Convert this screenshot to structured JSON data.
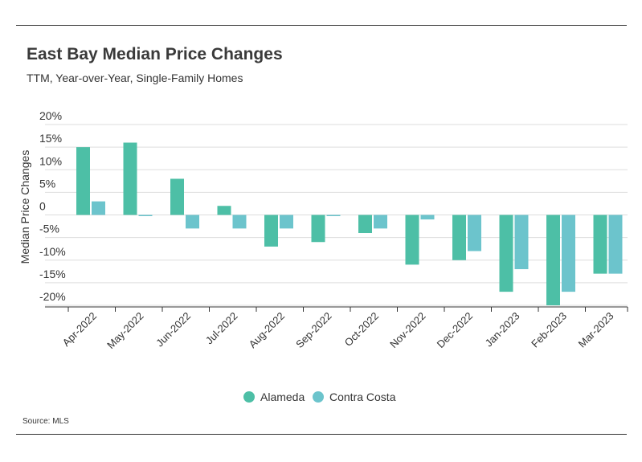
{
  "header": {
    "title": "East Bay Median Price Changes",
    "subtitle": "TTM, Year-over-Year, Single-Family Homes"
  },
  "footer": {
    "source": "Source: MLS"
  },
  "colors": {
    "alameda": "#4dbfa6",
    "contra_costa": "#6cc4cc",
    "grid": "#dddddd",
    "axis": "#333333"
  },
  "chart_data": {
    "type": "bar",
    "title": "East Bay Median Price Changes",
    "subtitle": "TTM, Year-over-Year, Single-Family Homes",
    "xlabel": "",
    "ylabel": "Median Price Changes",
    "ylim": [
      -20,
      20
    ],
    "yticks": [
      20,
      15,
      10,
      5,
      0,
      -5,
      -10,
      -15,
      -20
    ],
    "ytick_labels": [
      "20%",
      "15%",
      "10%",
      "5%",
      "0",
      "-5%",
      "-10%",
      "-15%",
      "-20%"
    ],
    "grid": true,
    "legend_position": "bottom-center",
    "categories": [
      "Apr-2022",
      "May-2022",
      "Jun-2022",
      "Jul-2022",
      "Aug-2022",
      "Sep-2022",
      "Oct-2022",
      "Nov-2022",
      "Dec-2022",
      "Jan-2023",
      "Feb-2023",
      "Mar-2023"
    ],
    "series": [
      {
        "name": "Alameda",
        "values": [
          15,
          16,
          8,
          2,
          -7,
          -6,
          -4,
          -11,
          -10,
          -17,
          -20,
          -13
        ]
      },
      {
        "name": "Contra Costa",
        "values": [
          3,
          0,
          -3,
          -3,
          -3,
          0,
          -3,
          -1,
          -8,
          -12,
          -17,
          -13
        ]
      }
    ]
  }
}
